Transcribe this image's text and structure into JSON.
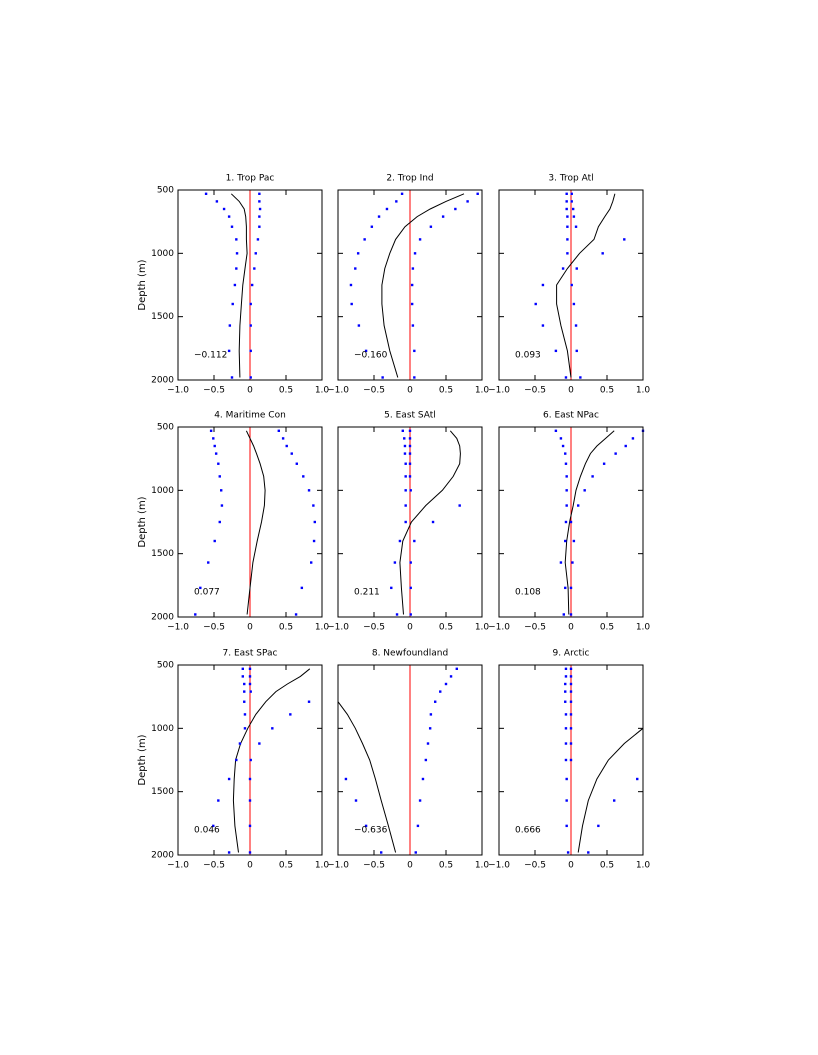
{
  "chart_data": [
    {
      "type": "line",
      "title": "1. Trop Pac",
      "annotation": "−0.112",
      "ylabel": "Depth (m)",
      "show_ytick_labels": true,
      "y": [
        530,
        590,
        650,
        710,
        790,
        890,
        1000,
        1120,
        1250,
        1400,
        1570,
        1770,
        1980
      ],
      "series": [
        {
          "style": "line",
          "color": "#000000",
          "values": [
            -0.26,
            -0.15,
            -0.08,
            -0.06,
            -0.05,
            -0.05,
            -0.04,
            -0.07,
            -0.1,
            -0.12,
            -0.14,
            -0.15,
            -0.14
          ]
        },
        {
          "style": "dots",
          "color": "#0000ff",
          "values": [
            -0.61,
            -0.46,
            -0.36,
            -0.29,
            -0.25,
            -0.19,
            -0.18,
            -0.19,
            -0.21,
            -0.24,
            -0.28,
            -0.29,
            -0.25
          ]
        },
        {
          "style": "dots",
          "color": "#0000ff",
          "values": [
            0.13,
            0.13,
            0.14,
            0.13,
            0.13,
            0.11,
            0.08,
            0.06,
            0.03,
            0.01,
            0.01,
            0.01,
            0.01
          ]
        }
      ],
      "refline": 0,
      "refline_color": "#ff0000",
      "xlim": [
        -1,
        1
      ],
      "xticks": [
        {
          "value": -1,
          "label": "−1.0"
        },
        {
          "value": -0.5,
          "label": "−0.5"
        },
        0,
        0.5,
        {
          "value": 1,
          "label": "1.0"
        }
      ],
      "ylim": [
        2000,
        500
      ],
      "yticks": [
        500,
        1000,
        1500,
        2000
      ]
    },
    {
      "type": "line",
      "title": "2. Trop Ind",
      "annotation": "−0.160",
      "show_ytick_labels": false,
      "y": [
        530,
        590,
        650,
        710,
        790,
        890,
        1000,
        1120,
        1250,
        1400,
        1570,
        1770,
        1980
      ],
      "series": [
        {
          "style": "line",
          "color": "#000000",
          "values": [
            0.75,
            0.5,
            0.28,
            0.1,
            -0.07,
            -0.2,
            -0.28,
            -0.35,
            -0.39,
            -0.39,
            -0.36,
            -0.28,
            -0.17
          ]
        },
        {
          "style": "dots",
          "color": "#0000ff",
          "values": [
            -0.11,
            -0.19,
            -0.32,
            -0.43,
            -0.53,
            -0.63,
            -0.72,
            -0.76,
            -0.82,
            -0.81,
            -0.71,
            -0.61,
            -0.38
          ]
        },
        {
          "style": "dots",
          "color": "#0000ff",
          "values": [
            0.94,
            0.8,
            0.63,
            0.46,
            0.29,
            0.14,
            0.07,
            0.04,
            0.03,
            0.03,
            0.04,
            0.06,
            0.06
          ]
        }
      ],
      "refline": 0,
      "refline_color": "#ff0000",
      "xlim": [
        -1,
        1
      ],
      "xticks": [
        {
          "value": -1,
          "label": "−1.0"
        },
        {
          "value": -0.5,
          "label": "−0.5"
        },
        0,
        0.5,
        {
          "value": 1,
          "label": "1.0"
        }
      ],
      "ylim": [
        2000,
        500
      ],
      "yticks": [
        500,
        1000,
        1500,
        2000
      ]
    },
    {
      "type": "line",
      "title": "3. Trop Atl",
      "annotation": "0.093",
      "show_ytick_labels": false,
      "y": [
        530,
        590,
        650,
        710,
        790,
        890,
        1000,
        1120,
        1250,
        1400,
        1570,
        1770,
        1980
      ],
      "series": [
        {
          "style": "line",
          "color": "#000000",
          "values": [
            0.61,
            0.58,
            0.54,
            0.47,
            0.38,
            0.32,
            0.12,
            -0.05,
            -0.2,
            -0.2,
            -0.14,
            -0.05,
            0.0
          ]
        },
        {
          "style": "dots",
          "color": "#0000ff",
          "values": [
            -0.06,
            -0.06,
            -0.06,
            -0.05,
            -0.05,
            -0.05,
            -0.05,
            -0.11,
            -0.39,
            -0.49,
            -0.39,
            -0.21,
            -0.07
          ]
        },
        {
          "style": "dots",
          "color": "#0000ff",
          "values": [
            0.01,
            0.01,
            0.03,
            0.04,
            0.07,
            0.74,
            0.44,
            0.08,
            0.01,
            0.04,
            0.07,
            0.08,
            0.13
          ]
        }
      ],
      "refline": 0,
      "refline_color": "#ff0000",
      "xlim": [
        -1,
        1
      ],
      "xticks": [
        {
          "value": -1,
          "label": "−1.0"
        },
        {
          "value": -0.5,
          "label": "−0.5"
        },
        0,
        0.5,
        {
          "value": 1,
          "label": "1.0"
        }
      ],
      "ylim": [
        2000,
        500
      ],
      "yticks": [
        500,
        1000,
        1500,
        2000
      ]
    },
    {
      "type": "line",
      "title": "4. Maritime Con",
      "annotation": "0.077",
      "ylabel": "Depth (m)",
      "show_ytick_labels": true,
      "y": [
        530,
        590,
        650,
        710,
        790,
        890,
        1000,
        1120,
        1250,
        1400,
        1570,
        1770,
        1980
      ],
      "series": [
        {
          "style": "line",
          "color": "#000000",
          "values": [
            -0.05,
            0.0,
            0.05,
            0.09,
            0.14,
            0.19,
            0.21,
            0.2,
            0.16,
            0.1,
            0.04,
            0.0,
            -0.04
          ]
        },
        {
          "style": "dots",
          "color": "#0000ff",
          "values": [
            -0.54,
            -0.51,
            -0.49,
            -0.47,
            -0.44,
            -0.42,
            -0.4,
            -0.39,
            -0.42,
            -0.49,
            -0.58,
            -0.69,
            -0.76
          ]
        },
        {
          "style": "dots",
          "color": "#0000ff",
          "values": [
            0.4,
            0.46,
            0.51,
            0.58,
            0.65,
            0.74,
            0.82,
            0.88,
            0.9,
            0.89,
            0.85,
            0.72,
            0.64
          ]
        }
      ],
      "refline": 0,
      "refline_color": "#ff0000",
      "xlim": [
        -1,
        1
      ],
      "xticks": [
        {
          "value": -1,
          "label": "−1.0"
        },
        {
          "value": -0.5,
          "label": "−0.5"
        },
        0,
        0.5,
        {
          "value": 1,
          "label": "1.0"
        }
      ],
      "ylim": [
        2000,
        500
      ],
      "yticks": [
        500,
        1000,
        1500,
        2000
      ]
    },
    {
      "type": "line",
      "title": "5. East SAtl",
      "annotation": "0.211",
      "show_ytick_labels": false,
      "y": [
        530,
        590,
        650,
        710,
        790,
        890,
        1000,
        1120,
        1250,
        1400,
        1570,
        1770,
        1980
      ],
      "series": [
        {
          "style": "line",
          "color": "#000000",
          "values": [
            0.56,
            0.65,
            0.69,
            0.7,
            0.69,
            0.6,
            0.45,
            0.22,
            0.02,
            -0.1,
            -0.14,
            -0.12,
            -0.09
          ]
        },
        {
          "style": "dots",
          "color": "#0000ff",
          "values": [
            -0.1,
            -0.08,
            -0.07,
            -0.07,
            -0.06,
            -0.06,
            -0.06,
            -0.06,
            -0.06,
            -0.14,
            -0.21,
            -0.26,
            -0.18
          ]
        },
        {
          "style": "dots",
          "color": "#0000ff",
          "values": [
            0.0,
            0.0,
            0.0,
            0.0,
            0.0,
            0.0,
            0.01,
            0.69,
            0.32,
            0.06,
            0.01,
            0.01,
            0.01
          ]
        }
      ],
      "refline": 0,
      "refline_color": "#ff0000",
      "xlim": [
        -1,
        1
      ],
      "xticks": [
        {
          "value": -1,
          "label": "−1.0"
        },
        {
          "value": -0.5,
          "label": "−0.5"
        },
        0,
        0.5,
        {
          "value": 1,
          "label": "1.0"
        }
      ],
      "ylim": [
        2000,
        500
      ],
      "yticks": [
        500,
        1000,
        1500,
        2000
      ]
    },
    {
      "type": "line",
      "title": "6. East NPac",
      "annotation": "0.108",
      "show_ytick_labels": false,
      "y": [
        530,
        590,
        650,
        710,
        790,
        890,
        1000,
        1120,
        1250,
        1400,
        1570,
        1770,
        1980
      ],
      "series": [
        {
          "style": "line",
          "color": "#000000",
          "values": [
            0.6,
            0.48,
            0.36,
            0.27,
            0.2,
            0.13,
            0.07,
            0.03,
            -0.02,
            -0.06,
            -0.08,
            -0.04,
            -0.03
          ]
        },
        {
          "style": "dots",
          "color": "#0000ff",
          "values": [
            -0.21,
            -0.14,
            -0.11,
            -0.08,
            -0.07,
            -0.06,
            -0.06,
            -0.06,
            -0.07,
            -0.08,
            -0.14,
            -0.08,
            -0.1
          ]
        },
        {
          "style": "dots",
          "color": "#0000ff",
          "values": [
            1.0,
            0.86,
            0.76,
            0.62,
            0.46,
            0.3,
            0.19,
            0.1,
            0.0,
            0.04,
            0.02,
            0.0,
            0.0
          ]
        }
      ],
      "refline": 0,
      "refline_color": "#ff0000",
      "xlim": [
        -1,
        1
      ],
      "xticks": [
        {
          "value": -1,
          "label": "−1.0"
        },
        {
          "value": -0.5,
          "label": "−0.5"
        },
        0,
        0.5,
        {
          "value": 1,
          "label": "1.0"
        }
      ],
      "ylim": [
        2000,
        500
      ],
      "yticks": [
        500,
        1000,
        1500,
        2000
      ]
    },
    {
      "type": "line",
      "title": "7. East SPac",
      "annotation": "0.046",
      "ylabel": "Depth (m)",
      "show_ytick_labels": true,
      "y": [
        530,
        590,
        650,
        710,
        790,
        890,
        1000,
        1120,
        1250,
        1400,
        1570,
        1770,
        1980
      ],
      "series": [
        {
          "style": "line",
          "color": "#000000",
          "values": [
            0.83,
            0.7,
            0.52,
            0.36,
            0.22,
            0.08,
            -0.03,
            -0.13,
            -0.2,
            -0.22,
            -0.23,
            -0.21,
            -0.16
          ]
        },
        {
          "style": "dots",
          "color": "#0000ff",
          "values": [
            -0.1,
            -0.1,
            -0.08,
            -0.08,
            -0.08,
            -0.07,
            -0.07,
            -0.14,
            -0.19,
            -0.29,
            -0.44,
            -0.51,
            -0.29
          ]
        },
        {
          "style": "dots",
          "color": "#0000ff",
          "values": [
            0.0,
            0.0,
            0.0,
            0.01,
            0.82,
            0.56,
            0.31,
            0.13,
            0.01,
            0.0,
            0.0,
            0.0,
            0.0
          ]
        }
      ],
      "refline": 0,
      "refline_color": "#ff0000",
      "xlim": [
        -1,
        1
      ],
      "xticks": [
        {
          "value": -1,
          "label": "−1.0"
        },
        {
          "value": -0.5,
          "label": "−0.5"
        },
        0,
        0.5,
        {
          "value": 1,
          "label": "1.0"
        }
      ],
      "ylim": [
        2000,
        500
      ],
      "yticks": [
        500,
        1000,
        1500,
        2000
      ]
    },
    {
      "type": "line",
      "title": "8. Newfoundland",
      "annotation": "−0.636",
      "show_ytick_labels": false,
      "y": [
        530,
        590,
        650,
        710,
        790,
        890,
        1000,
        1120,
        1250,
        1400,
        1570,
        1770,
        1980
      ],
      "series": [
        {
          "style": "line",
          "color": "#000000",
          "values": [
            null,
            null,
            null,
            null,
            -1.0,
            -0.87,
            -0.76,
            -0.66,
            -0.56,
            -0.48,
            -0.4,
            -0.3,
            -0.2
          ]
        },
        {
          "style": "dots",
          "color": "#0000ff",
          "values": [
            null,
            null,
            null,
            null,
            null,
            null,
            null,
            null,
            null,
            -0.89,
            -0.75,
            -0.61,
            -0.4
          ]
        },
        {
          "style": "dots",
          "color": "#0000ff",
          "values": [
            0.65,
            0.57,
            0.5,
            0.42,
            0.35,
            0.29,
            0.28,
            0.25,
            0.22,
            0.18,
            0.14,
            0.11,
            0.08
          ]
        }
      ],
      "refline": 0,
      "refline_color": "#ff0000",
      "xlim": [
        -1,
        1
      ],
      "xticks": [
        {
          "value": -1,
          "label": "−1.0"
        },
        {
          "value": -0.5,
          "label": "−0.5"
        },
        0,
        0.5,
        {
          "value": 1,
          "label": "1.0"
        }
      ],
      "ylim": [
        2000,
        500
      ],
      "yticks": [
        500,
        1000,
        1500,
        2000
      ]
    },
    {
      "type": "line",
      "title": "9. Arctic",
      "annotation": "0.666",
      "show_ytick_labels": false,
      "y": [
        530,
        590,
        650,
        710,
        790,
        890,
        1000,
        1120,
        1250,
        1400,
        1570,
        1770,
        1980
      ],
      "series": [
        {
          "style": "line",
          "color": "#000000",
          "values": [
            null,
            null,
            null,
            null,
            null,
            null,
            1.0,
            0.74,
            0.52,
            0.36,
            0.24,
            0.16,
            0.1
          ]
        },
        {
          "style": "dots",
          "color": "#0000ff",
          "values": [
            -0.07,
            -0.07,
            -0.08,
            -0.08,
            -0.08,
            -0.07,
            -0.07,
            -0.07,
            -0.07,
            -0.06,
            -0.06,
            -0.06,
            -0.04
          ]
        },
        {
          "style": "dots",
          "color": "#0000ff",
          "values": [
            0.0,
            0.0,
            0.0,
            0.0,
            0.0,
            0.0,
            0.0,
            0.0,
            0.0,
            0.92,
            0.6,
            0.38,
            0.24
          ]
        }
      ],
      "refline": 0,
      "refline_color": "#ff0000",
      "xlim": [
        -1,
        1
      ],
      "xticks": [
        {
          "value": -1,
          "label": "−1.0"
        },
        {
          "value": -0.5,
          "label": "−0.5"
        },
        0,
        0.5,
        {
          "value": 1,
          "label": "1.0"
        }
      ],
      "ylim": [
        2000,
        500
      ],
      "yticks": [
        500,
        1000,
        1500,
        2000
      ]
    }
  ]
}
